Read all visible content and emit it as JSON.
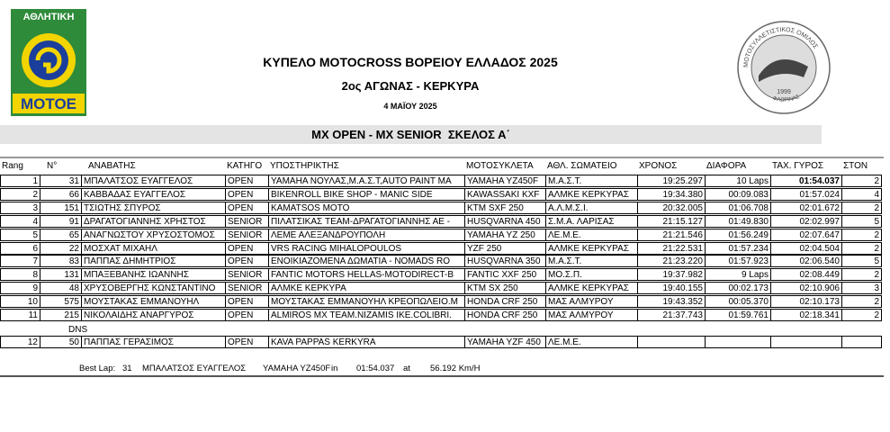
{
  "logo_left": {
    "top": "ΑΘΛΗΤΙΚΗ",
    "bottom": "ΜΟΤΟΕ"
  },
  "logo_right": {
    "ring": "ΜΟΤΟΣΥΛΛΕΤΙΣΤΙΚΟΣ ΟΜΙΛΟΣ",
    "year": "1999",
    "city": "ΦΛΩΡΙΝΑΣ"
  },
  "header": {
    "title": "ΚΥΠΕΛΟ MOTOCROSS ΒΟΡΕΙΟΥ ΕΛΛΑΔΟΣ 2025",
    "subtitle": "2ος ΑΓΩΝΑΣ - ΚΕΡΚΥΡΑ",
    "date": "4 ΜΑΪΟΥ 2025",
    "race": "MX OPEN - MX SENIOR  ΣΚΕΛΟΣ Α΄"
  },
  "table": {
    "columns": [
      "Rang",
      "N°",
      "ΑΝΑΒΑΤΗΣ",
      "ΚΑΤΗΓΟ",
      "ΥΠΟΣΤΗΡΙΚΤΗΣ",
      "ΜΟΤΟΣΥΚΛΕΤΑ",
      "ΑΘΛ. ΣΩΜΑΤΕΙΟ",
      "ΧΡΟΝΟΣ",
      "ΔΙΑΦΟΡΑ",
      "ΤΑΧ. ΓΥΡΟΣ",
      "ΣΤΟΝ"
    ],
    "rows": [
      [
        "1",
        "31",
        "ΜΠΑΛΑΤΣΟΣ ΕΥΑΓΓΕΛΟΣ",
        "OPEN",
        "YAMAHA ΝΟΥΛΑΣ,Μ.Α.Σ.Τ,AUTO PAINT MA",
        "YAMAHA YZ450F",
        "Μ.Α.Σ.Τ.",
        "19:25.297",
        "10 Laps",
        "01:54.037",
        "2"
      ],
      [
        "2",
        "66",
        "ΚΑΒΒΑΔΑΣ ΕΥΑΓΓΕΛΟΣ",
        "OPEN",
        "BIKENROLL BIKE SHOP - MANIC SIDE",
        "KAWASSAKI KXF",
        "ΑΛΜΚΕ ΚΕΡΚΥΡΑΣ",
        "19:34.380",
        "00:09.083",
        "01:57.024",
        "4"
      ],
      [
        "3",
        "151",
        "ΤΣΙΩΤΗΣ ΣΠΥΡΟΣ",
        "OPEN",
        "KAMATSOS MOTO",
        "KTM SXF 250",
        "Α.Λ.Μ.Σ.Ι.",
        "20:32.005",
        "01:06.708",
        "02:01.672",
        "2"
      ],
      [
        "4",
        "91",
        "ΔΡΑΓΑΤΟΓΙΑΝΝΗΣ ΧΡΗΣΤΟΣ",
        "SENIOR",
        "ΠΙΛΑΤΣΙΚΑΣ TEAM-ΔΡΑΓΑΤΟΓΙΑΝΝΗΣ ΑΕ -",
        "HUSQVARNA 450",
        "Σ.Μ.Α. ΛΑΡΙΣΑΣ",
        "21:15.127",
        "01:49.830",
        "02:02.997",
        "5"
      ],
      [
        "5",
        "65",
        "ΑΝΑΓΝΩΣΤΟΥ ΧΡΥΣΟΣΤΟΜΟΣ",
        "SENIOR",
        "ΛΕΜΕ ΑΛΕΞΑΝΔΡΟΥΠΟΛΗ",
        "YAMAHA YZ 250",
        "ΛΕ.Μ.Ε.",
        "21:21.546",
        "01:56.249",
        "02:07.647",
        "2"
      ],
      [
        "6",
        "22",
        "ΜΟΣΧΑΤ ΜΙΧΑΗΛ",
        "OPEN",
        "VRS RACING MIHALOPOULOS",
        "YZF 250",
        "ΑΛΜΚΕ ΚΕΡΚΥΡΑΣ",
        "21:22.531",
        "01:57.234",
        "02:04.504",
        "2"
      ],
      [
        "7",
        "83",
        "ΠΑΠΠΑΣ ΔΗΜΗΤΡΙΟΣ",
        "OPEN",
        "ΕΝΟΙΚΙΑΖΟΜΕΝΑ ΔΩΜΑΤΙΑ - NOMADS RO",
        "HUSQVARNA 350",
        "Μ.Α.Σ.Τ.",
        "21:23.220",
        "01:57.923",
        "02:06.540",
        "5"
      ],
      [
        "8",
        "131",
        "ΜΠΑΞΕΒΑΝΗΣ ΙΩΑΝΝΗΣ",
        "SENIOR",
        "FANTIC MOTORS HELLAS-MOTODIRECT-B",
        "FANTIC XXF 250",
        "ΜΟ.Σ.Π.",
        "19:37.982",
        "9 Laps",
        "02:08.449",
        "2"
      ],
      [
        "9",
        "48",
        "ΧΡΥΣΟΒΕΡΓΗΣ ΚΩΝΣΤΑΝΤΙΝΟ",
        "SENIOR",
        "ΑΛΜΚΕ ΚΕΡΚΥΡΑ",
        "KTM SX 250",
        "ΑΛΜΚΕ ΚΕΡΚΥΡΑΣ",
        "19:40.155",
        "00:02.173",
        "02:10.906",
        "3"
      ],
      [
        "10",
        "575",
        "ΜΟΥΣΤΑΚΑΣ ΕΜΜΑΝΟΥΗΛ",
        "OPEN",
        "ΜΟΥΣΤΑΚΑΣ ΕΜΜΑΝΟΥΗΛ ΚΡΕΟΠΩΛΕΙΟ.Μ",
        "HONDA CRF 250",
        "ΜΑΣ ΑΛΜΥΡΟΥ",
        "19:43.352",
        "00:05.370",
        "02:10.173",
        "2"
      ],
      [
        "11",
        "215",
        "ΝΙΚΟΛΑΙΔΗΣ ΑΝΑΡΓΥΡΟΣ",
        "OPEN",
        "ALMIROS MX TEAM.NIZAMIS IKE.COLIBRI.",
        "HONDA CRF 250",
        "ΜΑΣ ΑΛΜΥΡΟΥ",
        "21:37.743",
        "01:59.761",
        "02:18.341",
        "2"
      ]
    ],
    "dns_label": "DNS",
    "dns_rows": [
      [
        "12",
        "50",
        "ΠΑΠΠΑΣ ΓΕΡΑΣΙΜΟΣ",
        "OPEN",
        "KAVA PAPPAS KERKYRA",
        "YAMAHA YZF 450",
        "ΛΕ.Μ.Ε."
      ]
    ]
  },
  "best_lap": {
    "label": "Best Lap:",
    "number": "31",
    "rider": "ΜΠΑΛΑΤΣΟΣ ΕΥΑΓΓΕΛΟΣ",
    "bike": "YAMAHA YZ450F",
    "in": "in",
    "time": "01:54.037",
    "at": "at",
    "speed": "56.192 Km/H"
  }
}
